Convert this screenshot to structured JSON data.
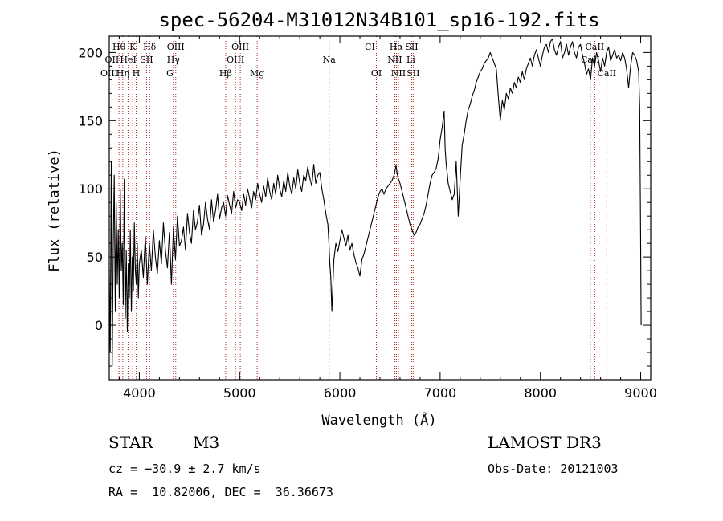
{
  "chart_data": {
    "type": "line",
    "title": "spec-56204-M31012N34B101_sp16-192.fits",
    "xlabel": "Wavelength (Å)",
    "ylabel": "Flux (relative)",
    "xlim": [
      3700,
      9100
    ],
    "ylim": [
      -40,
      212
    ],
    "xticks": [
      4000,
      5000,
      6000,
      7000,
      8000,
      9000
    ],
    "yticks": [
      0,
      50,
      100,
      150,
      200
    ],
    "grid": false,
    "series": [
      {
        "color": "#000000",
        "x": [
          3700,
          3710,
          3720,
          3730,
          3740,
          3750,
          3760,
          3770,
          3780,
          3790,
          3800,
          3810,
          3820,
          3830,
          3840,
          3850,
          3860,
          3870,
          3880,
          3890,
          3900,
          3910,
          3920,
          3930,
          3940,
          3950,
          3960,
          3970,
          3980,
          3990,
          4000,
          4020,
          4040,
          4060,
          4080,
          4100,
          4120,
          4140,
          4160,
          4180,
          4200,
          4220,
          4240,
          4260,
          4280,
          4300,
          4320,
          4340,
          4360,
          4380,
          4400,
          4420,
          4440,
          4460,
          4480,
          4500,
          4520,
          4540,
          4560,
          4580,
          4600,
          4620,
          4640,
          4660,
          4680,
          4700,
          4720,
          4740,
          4760,
          4780,
          4800,
          4820,
          4840,
          4860,
          4880,
          4900,
          4920,
          4940,
          4960,
          4980,
          5000,
          5020,
          5040,
          5060,
          5080,
          5100,
          5120,
          5140,
          5160,
          5180,
          5200,
          5220,
          5240,
          5260,
          5280,
          5300,
          5320,
          5340,
          5360,
          5380,
          5400,
          5420,
          5440,
          5460,
          5480,
          5500,
          5520,
          5540,
          5560,
          5580,
          5600,
          5620,
          5640,
          5660,
          5680,
          5700,
          5720,
          5740,
          5760,
          5780,
          5800,
          5820,
          5840,
          5860,
          5880,
          5890,
          5900,
          5910,
          5920,
          5940,
          5960,
          5980,
          6000,
          6020,
          6040,
          6060,
          6080,
          6100,
          6120,
          6140,
          6160,
          6180,
          6200,
          6220,
          6240,
          6260,
          6280,
          6300,
          6320,
          6340,
          6360,
          6380,
          6400,
          6420,
          6440,
          6460,
          6480,
          6500,
          6520,
          6540,
          6560,
          6570,
          6580,
          6600,
          6620,
          6640,
          6660,
          6680,
          6700,
          6720,
          6740,
          6760,
          6780,
          6800,
          6820,
          6840,
          6860,
          6880,
          6900,
          6920,
          6940,
          6960,
          6980,
          7000,
          7020,
          7040,
          7050,
          7060,
          7070,
          7080,
          7100,
          7120,
          7140,
          7160,
          7180,
          7200,
          7220,
          7240,
          7260,
          7280,
          7300,
          7320,
          7340,
          7360,
          7380,
          7400,
          7420,
          7440,
          7460,
          7480,
          7500,
          7520,
          7540,
          7560,
          7580,
          7600,
          7620,
          7640,
          7660,
          7680,
          7700,
          7720,
          7740,
          7760,
          7780,
          7800,
          7820,
          7840,
          7860,
          7880,
          7900,
          7920,
          7940,
          7960,
          7980,
          8000,
          8020,
          8040,
          8060,
          8080,
          8100,
          8120,
          8140,
          8160,
          8180,
          8200,
          8220,
          8240,
          8260,
          8280,
          8300,
          8320,
          8340,
          8360,
          8380,
          8400,
          8420,
          8440,
          8460,
          8480,
          8500,
          8520,
          8540,
          8560,
          8580,
          8600,
          8620,
          8640,
          8660,
          8680,
          8700,
          8720,
          8740,
          8760,
          8780,
          8800,
          8820,
          8840,
          8860,
          8880,
          8900,
          8920,
          8940,
          8960,
          8980,
          8990,
          9000,
          9005
        ],
        "y": [
          40,
          -20,
          120,
          -30,
          60,
          110,
          10,
          90,
          30,
          70,
          20,
          100,
          40,
          60,
          15,
          107,
          5,
          55,
          -5,
          45,
          20,
          70,
          10,
          50,
          25,
          75,
          40,
          30,
          60,
          20,
          45,
          55,
          35,
          65,
          30,
          60,
          40,
          70,
          50,
          38,
          62,
          45,
          75,
          55,
          42,
          68,
          30,
          72,
          48,
          80,
          58,
          62,
          72,
          55,
          82,
          68,
          60,
          84,
          70,
          76,
          88,
          66,
          74,
          90,
          78,
          70,
          92,
          76,
          84,
          96,
          78,
          86,
          90,
          80,
          95,
          88,
          82,
          98,
          86,
          92,
          90,
          84,
          96,
          88,
          100,
          93,
          86,
          98,
          92,
          104,
          96,
          90,
          102,
          94,
          108,
          98,
          92,
          104,
          96,
          110,
          100,
          94,
          106,
          98,
          112,
          102,
          96,
          108,
          100,
          114,
          104,
          98,
          110,
          106,
          116,
          108,
          102,
          118,
          104,
          110,
          112,
          100,
          92,
          82,
          74,
          62,
          45,
          35,
          10,
          48,
          60,
          54,
          62,
          70,
          64,
          58,
          66,
          55,
          60,
          52,
          46,
          42,
          36,
          48,
          52,
          58,
          64,
          70,
          76,
          82,
          88,
          94,
          98,
          100,
          96,
          100,
          102,
          104,
          106,
          110,
          117,
          112,
          108,
          104,
          98,
          92,
          86,
          80,
          74,
          70,
          66,
          68,
          72,
          74,
          78,
          82,
          88,
          96,
          104,
          110,
          112,
          115,
          122,
          136,
          145,
          157,
          130,
          118,
          112,
          104,
          98,
          92,
          96,
          120,
          80,
          108,
          132,
          140,
          150,
          158,
          162,
          168,
          172,
          178,
          182,
          186,
          188,
          192,
          194,
          196,
          200,
          196,
          192,
          188,
          168,
          150,
          165,
          158,
          170,
          166,
          174,
          170,
          178,
          174,
          182,
          178,
          186,
          180,
          188,
          192,
          196,
          190,
          198,
          202,
          196,
          190,
          198,
          204,
          206,
          200,
          208,
          210,
          202,
          198,
          204,
          208,
          196,
          200,
          206,
          198,
          204,
          208,
          200,
          196,
          204,
          206,
          198,
          192,
          184,
          188,
          180,
          196,
          190,
          200,
          194,
          186,
          196,
          190,
          200,
          204,
          194,
          198,
          202,
          196,
          198,
          194,
          200,
          196,
          188,
          174,
          190,
          200,
          198,
          194,
          186,
          160,
          60,
          0
        ]
      }
    ],
    "spectral_lines": [
      {
        "label": "Hθ",
        "x": 3797,
        "row": 0
      },
      {
        "label": "K",
        "x": 3934,
        "row": 0
      },
      {
        "label": "Hδ",
        "x": 4102,
        "row": 0
      },
      {
        "label": "OIII",
        "x": 4363,
        "row": 0
      },
      {
        "label": "OIII",
        "x": 5007,
        "row": 0
      },
      {
        "label": "CI",
        "x": 6300,
        "row": 0
      },
      {
        "label": "Hα",
        "x": 6563,
        "row": 0
      },
      {
        "label": "SII",
        "x": 6716,
        "row": 0
      },
      {
        "label": "CaII",
        "x": 8542,
        "row": 0
      },
      {
        "label": "OII",
        "x": 3727,
        "row": 1
      },
      {
        "label": "HeI",
        "x": 3889,
        "row": 1
      },
      {
        "label": "SII",
        "x": 4072,
        "row": 1
      },
      {
        "label": "Hγ",
        "x": 4340,
        "row": 1
      },
      {
        "label": "OIII",
        "x": 4959,
        "row": 1
      },
      {
        "label": "Na",
        "x": 5893,
        "row": 1
      },
      {
        "label": "NII",
        "x": 6548,
        "row": 1
      },
      {
        "label": "Li",
        "x": 6708,
        "row": 1
      },
      {
        "label": "CaII",
        "x": 8498,
        "row": 1
      },
      {
        "label": "OIII",
        "x": 3700,
        "row": 2
      },
      {
        "label": "Hη",
        "x": 3835,
        "row": 2
      },
      {
        "label": "H",
        "x": 3969,
        "row": 2
      },
      {
        "label": "G",
        "x": 4305,
        "row": 2
      },
      {
        "label": "Hβ",
        "x": 4861,
        "row": 2
      },
      {
        "label": "Mg",
        "x": 5175,
        "row": 2
      },
      {
        "label": "OI",
        "x": 6364,
        "row": 2
      },
      {
        "label": "NII",
        "x": 6584,
        "row": 2
      },
      {
        "label": "SII",
        "x": 6731,
        "row": 2
      },
      {
        "label": "CaII",
        "x": 8662,
        "row": 2
      }
    ],
    "marker_color": "#b22222"
  },
  "info": {
    "object_class": "STAR",
    "subclass": "M3",
    "survey": "LAMOST DR3",
    "cz": "cz = −30.9 ± 2.7 km/s",
    "obs_date": "Obs-Date: 20121003",
    "coords": "RA =  10.82006, DEC =  36.36673"
  }
}
